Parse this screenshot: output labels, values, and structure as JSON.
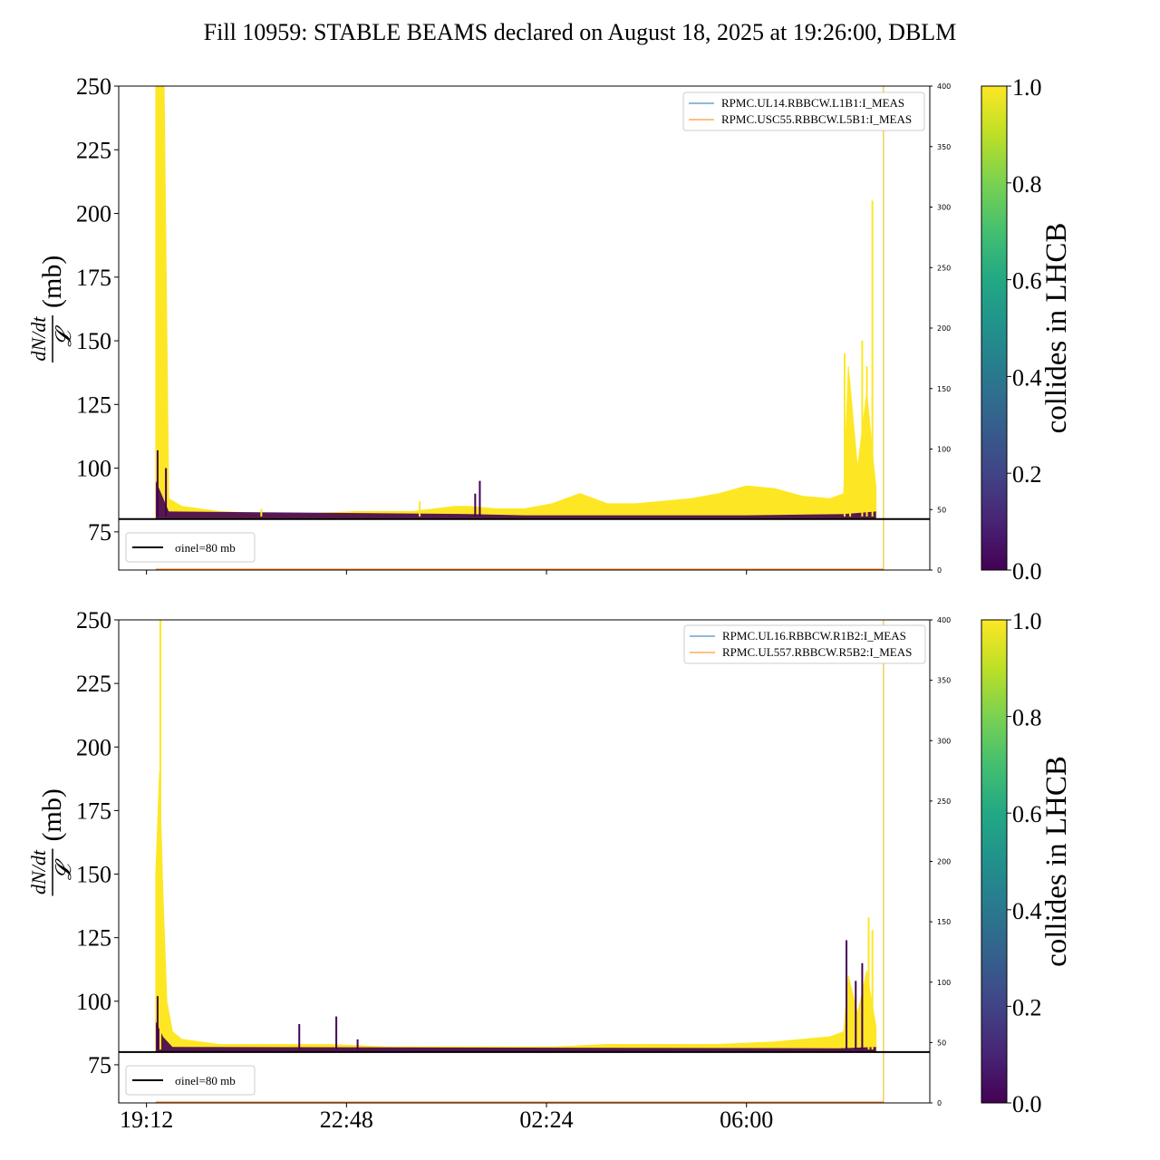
{
  "figure": {
    "title": "Fill 10959: STABLE BEAMS declared on August 18, 2025 at 19:26:00, DBLM"
  },
  "colors": {
    "collides_high": "#fde725",
    "collides_low": "#440154",
    "legend_line_1": "#1f77b4",
    "legend_line_2": "#ff7f0e",
    "reference_line": "#000000"
  },
  "chart_data": [
    {
      "type": "line",
      "ylabel_numerator": "dN/dt",
      "ylabel_denominator": "𝓛",
      "ylabel_unit": "(mb)",
      "ylim": [
        60,
        250
      ],
      "yticks": [
        75,
        100,
        125,
        150,
        175,
        200,
        225,
        250
      ],
      "ytick_labels": [
        "75",
        "100",
        "125",
        "150",
        "175",
        "200",
        "225",
        "250"
      ],
      "xlim": [
        "18:42",
        "09:18"
      ],
      "xticks": [
        "19:12",
        "22:48",
        "02:24",
        "06:00"
      ],
      "secondary_ylim": [
        0,
        400
      ],
      "secondary_yticks": [
        "0",
        "50",
        "100",
        "150",
        "200",
        "250",
        "300",
        "350",
        "400"
      ],
      "reference_line": {
        "y": 80,
        "label": "σinel=80 mb"
      },
      "legend": {
        "placement": "top-right",
        "entries": [
          "RPMC.UL14.RBBCW.L1B1:I_MEAS",
          "RPMC.USC55.RBBCW.L5B1:I_MEAS"
        ]
      },
      "reference_legend_placement": "bottom-left",
      "envelope": {
        "x": [
          "19:22",
          "19:26",
          "19:31",
          "19:36",
          "19:50",
          "20:30",
          "21:30",
          "22:00",
          "23:00",
          "00:00",
          "00:45",
          "01:00",
          "01:30",
          "02:00",
          "02:30",
          "03:00",
          "03:30",
          "04:00",
          "04:30",
          "05:00",
          "05:30",
          "06:00",
          "06:30",
          "07:00",
          "07:30",
          "07:45",
          "07:50",
          "08:00",
          "08:10",
          "08:15",
          "08:20"
        ],
        "upper": [
          250,
          250,
          250,
          88,
          85,
          83,
          82,
          82,
          83,
          83,
          85,
          85,
          84,
          84,
          86,
          90,
          86,
          86,
          87,
          88,
          90,
          93,
          92,
          89,
          88,
          90,
          140,
          100,
          130,
          110,
          92
        ],
        "lower": [
          80.5,
          80.5,
          80.5,
          80.5,
          80.5,
          80.5,
          80.5,
          80.5,
          80.5,
          80.5,
          80.5,
          80.5,
          80.5,
          80.5,
          80.5,
          80.5,
          80.5,
          80.5,
          80.5,
          80.5,
          80.5,
          80.5,
          80.5,
          80.5,
          80.5,
          80.5,
          80.5,
          80.5,
          80.5,
          80.5,
          80.5
        ]
      },
      "spikes": [
        {
          "x": "19:24",
          "y": 107,
          "c": 0.0
        },
        {
          "x": "19:33",
          "y": 100,
          "c": 0.0
        },
        {
          "x": "21:16",
          "y": 84,
          "c": 1.0
        },
        {
          "x": "00:07",
          "y": 87,
          "c": 1.0
        },
        {
          "x": "01:07",
          "y": 90,
          "c": 0.0
        },
        {
          "x": "01:12",
          "y": 95,
          "c": 0.0
        },
        {
          "x": "07:46",
          "y": 145,
          "c": 1.0
        },
        {
          "x": "07:52",
          "y": 130,
          "c": 1.0
        },
        {
          "x": "08:05",
          "y": 150,
          "c": 1.0
        },
        {
          "x": "08:10",
          "y": 140,
          "c": 1.0
        },
        {
          "x": "08:16",
          "y": 205,
          "c": 1.0
        }
      ],
      "dark_band": [
        {
          "x": "19:22",
          "y": 95
        },
        {
          "x": "19:28",
          "y": 90
        },
        {
          "x": "19:36",
          "y": 83
        },
        {
          "x": "01:00",
          "y": 82
        },
        {
          "x": "02:00",
          "y": 81.5
        },
        {
          "x": "06:00",
          "y": 81.5
        },
        {
          "x": "07:45",
          "y": 82
        },
        {
          "x": "08:20",
          "y": 83
        }
      ],
      "vertical_marker": {
        "x": "08:28"
      },
      "colorbar": {
        "label": "collides in LHCB",
        "range": [
          0.0,
          1.0
        ],
        "ticks": [
          "0.0",
          "0.2",
          "0.4",
          "0.6",
          "0.8",
          "1.0"
        ]
      }
    },
    {
      "type": "line",
      "ylabel_numerator": "dN/dt",
      "ylabel_denominator": "𝓛",
      "ylabel_unit": "(mb)",
      "ylim": [
        60,
        250
      ],
      "yticks": [
        75,
        100,
        125,
        150,
        175,
        200,
        225,
        250
      ],
      "ytick_labels": [
        "75",
        "100",
        "125",
        "150",
        "175",
        "200",
        "225",
        "250"
      ],
      "xlim": [
        "18:42",
        "09:18"
      ],
      "xticks": [
        "19:12",
        "22:48",
        "02:24",
        "06:00"
      ],
      "xtick_labels": [
        "19:12",
        "22:48",
        "02:24",
        "06:00"
      ],
      "secondary_ylim": [
        0,
        400
      ],
      "secondary_yticks": [
        "0",
        "50",
        "100",
        "150",
        "200",
        "250",
        "300",
        "350",
        "400"
      ],
      "reference_line": {
        "y": 80,
        "label": "σinel=80 mb"
      },
      "legend": {
        "placement": "top-right",
        "entries": [
          "RPMC.UL16.RBBCW.R1B2:I_MEAS",
          "RPMC.UL557.RBBCW.R5B2:I_MEAS"
        ]
      },
      "reference_legend_placement": "bottom-left",
      "envelope": {
        "x": [
          "19:22",
          "19:26",
          "19:30",
          "19:34",
          "19:40",
          "19:50",
          "20:30",
          "21:30",
          "22:30",
          "23:30",
          "00:30",
          "01:30",
          "02:30",
          "03:30",
          "04:30",
          "05:30",
          "06:30",
          "07:00",
          "07:30",
          "07:45",
          "07:50",
          "08:00",
          "08:10",
          "08:15",
          "08:20"
        ],
        "upper": [
          150,
          190,
          140,
          100,
          88,
          85,
          83,
          83,
          83,
          82,
          82,
          82,
          82,
          83,
          83,
          83,
          84,
          85,
          86,
          88,
          110,
          95,
          112,
          100,
          90
        ],
        "lower": [
          80.5,
          80.5,
          80.5,
          80.5,
          80.5,
          80.5,
          80.5,
          80.5,
          80.5,
          80.5,
          80.5,
          80.5,
          80.5,
          80.5,
          80.5,
          80.5,
          80.5,
          80.5,
          80.5,
          80.5,
          80.5,
          80.5,
          80.5,
          80.5,
          80.5
        ]
      },
      "spikes": [
        {
          "x": "19:27",
          "y": 250,
          "c": 1.0
        },
        {
          "x": "19:24",
          "y": 102,
          "c": 0.0
        },
        {
          "x": "21:57",
          "y": 91,
          "c": 0.0
        },
        {
          "x": "22:37",
          "y": 94,
          "c": 0.0
        },
        {
          "x": "23:00",
          "y": 85,
          "c": 0.0
        },
        {
          "x": "07:48",
          "y": 124,
          "c": 0.0
        },
        {
          "x": "07:58",
          "y": 108,
          "c": 0.0
        },
        {
          "x": "08:05",
          "y": 115,
          "c": 0.0
        },
        {
          "x": "08:12",
          "y": 133,
          "c": 1.0
        },
        {
          "x": "08:16",
          "y": 128,
          "c": 1.0
        }
      ],
      "dark_band": [
        {
          "x": "19:22",
          "y": 92
        },
        {
          "x": "19:30",
          "y": 86
        },
        {
          "x": "19:40",
          "y": 82
        },
        {
          "x": "07:40",
          "y": 81.5
        },
        {
          "x": "08:20",
          "y": 82
        }
      ],
      "vertical_marker": {
        "x": "08:28"
      },
      "colorbar": {
        "label": "collides in LHCB",
        "range": [
          0.0,
          1.0
        ],
        "ticks": [
          "0.0",
          "0.2",
          "0.4",
          "0.6",
          "0.8",
          "1.0"
        ]
      }
    }
  ]
}
